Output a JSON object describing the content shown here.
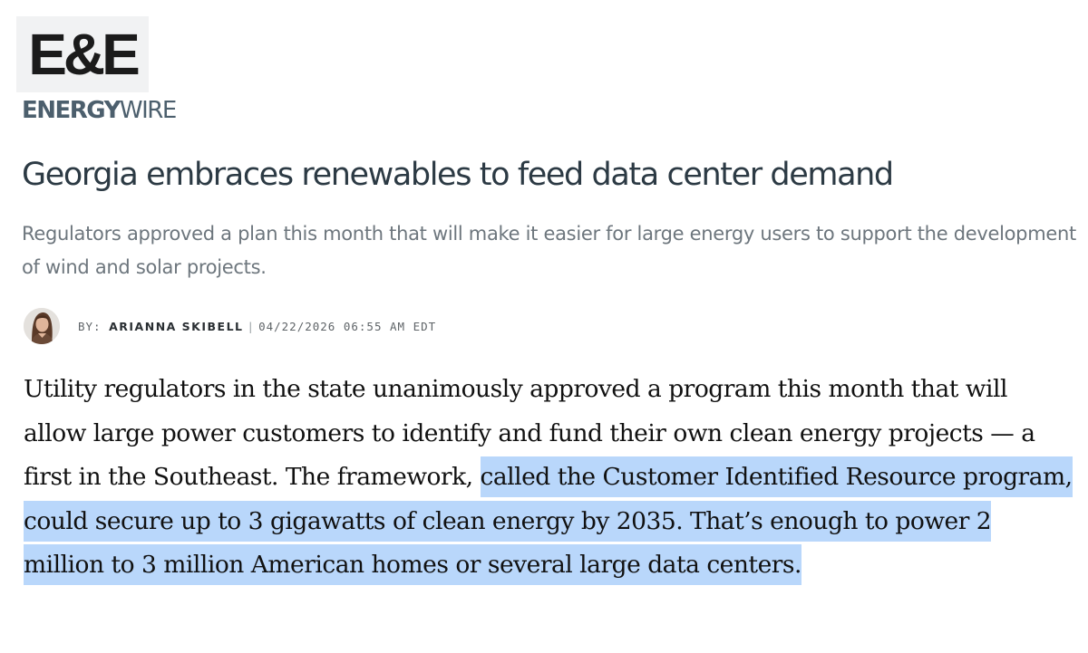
{
  "logo": {
    "mark": "E&E",
    "brand_strong": "ENERGY",
    "brand_light": "WIRE"
  },
  "article": {
    "headline": "Georgia embraces renewables to feed data center demand",
    "subhead": "Regulators approved a plan this month that will make it easier for large energy users to support the development of wind and solar projects.",
    "byline": {
      "by_label": "BY:",
      "author": "ARIANNA SKIBELL",
      "separator": "|",
      "timestamp": "04/22/2026 06:55 AM EDT"
    },
    "body": {
      "before_highlight": "Utility regulators in the state unanimously approved a program this month that will allow large power customers to identify and fund their own clean energy projects — a first in the Southeast. The framework, ",
      "highlighted": "called the Customer Identified Resource program, could secure up to 3 gigawatts of clean energy by 2035. That’s enough to power 2 million to 3 million American homes or several large data centers."
    }
  },
  "colors": {
    "highlight": "#b9d7fb",
    "brand": "#4c5f6d",
    "logo_bg": "#f1f2f3"
  }
}
